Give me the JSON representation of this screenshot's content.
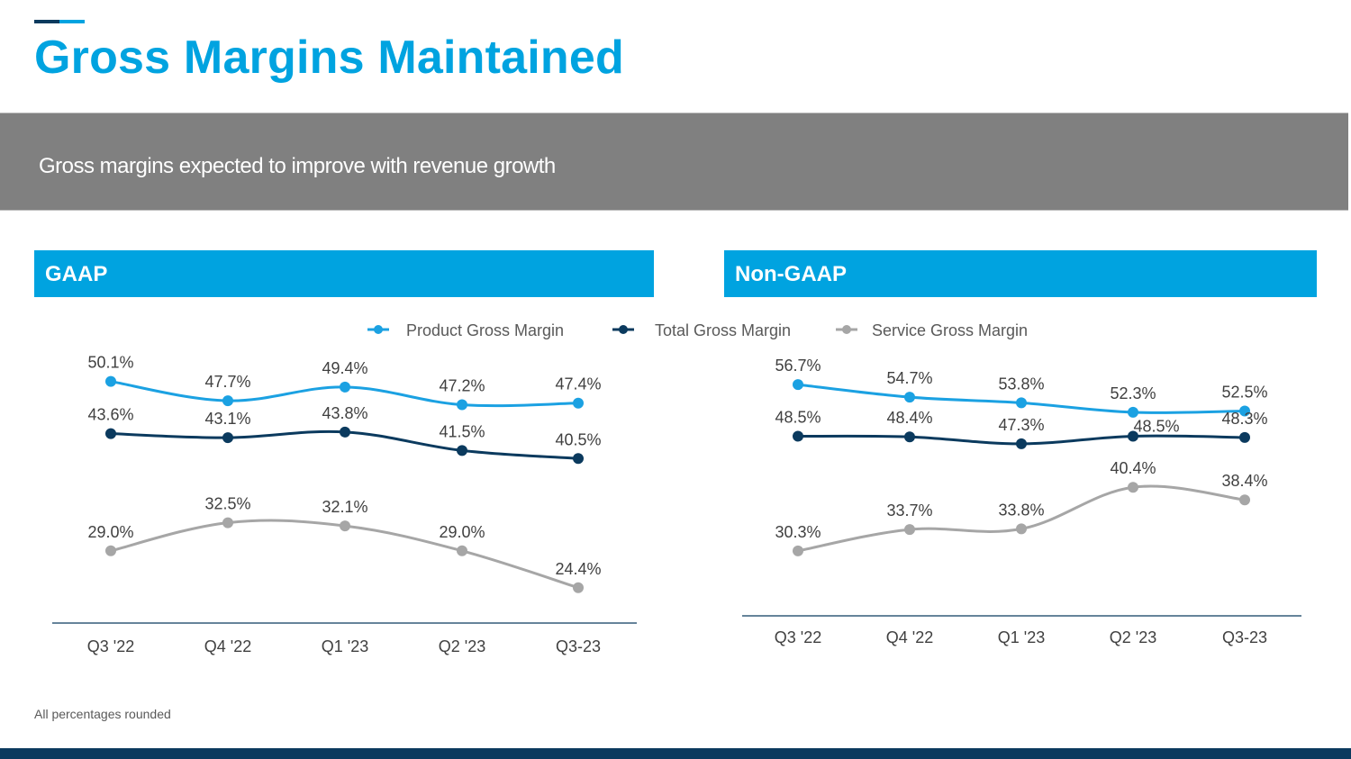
{
  "title": "Gross Margins Maintained",
  "subtitle": "Gross margins expected to improve with revenue growth",
  "footnote": "All percentages rounded",
  "colors": {
    "accent": "#00a3e0",
    "navy": "#0b3a5e",
    "gray_band": "#808080",
    "service": "#a6a6a6"
  },
  "legend": [
    {
      "name": "Product Gross Margin",
      "color": "#1ba1e2"
    },
    {
      "name": "Total Gross Margin",
      "color": "#0b3a5e"
    },
    {
      "name": "Service Gross Margin",
      "color": "#a6a6a6"
    }
  ],
  "chart_data": [
    {
      "type": "line",
      "title": "GAAP",
      "categories": [
        "Q3 '22",
        "Q4 '22",
        "Q1 '23",
        "Q2 '23",
        "Q3-23"
      ],
      "ylim": [
        20,
        55
      ],
      "grid": false,
      "legend_position": "top",
      "series": [
        {
          "name": "Product Gross Margin",
          "values": [
            50.1,
            47.7,
            49.4,
            47.2,
            47.4
          ],
          "labels": [
            "50.1%",
            "47.7%",
            "49.4%",
            "47.2%",
            "47.4%"
          ]
        },
        {
          "name": "Total Gross Margin",
          "values": [
            43.6,
            43.1,
            43.8,
            41.5,
            40.5
          ],
          "labels": [
            "43.6%",
            "43.1%",
            "43.8%",
            "41.5%",
            "40.5%"
          ]
        },
        {
          "name": "Service Gross Margin",
          "values": [
            29.0,
            32.5,
            32.1,
            29.0,
            24.4
          ],
          "labels": [
            "29.0%",
            "32.5%",
            "32.1%",
            "29.0%",
            "24.4%"
          ]
        }
      ]
    },
    {
      "type": "line",
      "title": "Non-GAAP",
      "categories": [
        "Q3 '22",
        "Q4 '22",
        "Q1 '23",
        "Q2 '23",
        "Q3-23"
      ],
      "ylim": [
        20,
        60
      ],
      "grid": false,
      "legend_position": "top",
      "series": [
        {
          "name": "Product Gross Margin",
          "values": [
            56.7,
            54.7,
            53.8,
            52.3,
            52.5
          ],
          "labels": [
            "56.7%",
            "54.7%",
            "53.8%",
            "52.3%",
            "52.5%"
          ]
        },
        {
          "name": "Total Gross Margin",
          "values": [
            48.5,
            48.4,
            47.3,
            48.5,
            48.3
          ],
          "labels": [
            "48.5%",
            "48.4%",
            "47.3%",
            "48.5%",
            "48.3%"
          ]
        },
        {
          "name": "Service Gross Margin",
          "values": [
            30.3,
            33.7,
            33.8,
            40.4,
            38.4
          ],
          "labels": [
            "30.3%",
            "33.7%",
            "33.8%",
            "40.4%",
            "38.4%"
          ]
        }
      ]
    }
  ]
}
